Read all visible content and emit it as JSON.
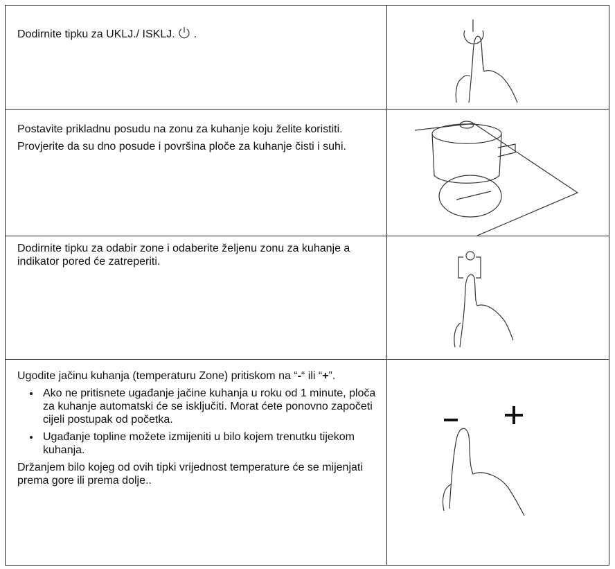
{
  "rows": [
    {
      "text_before": "Dodirnite tipku za UKLJ./ ISKLJ.",
      "text_after": "."
    },
    {
      "paragraphs": [
        "Postavite prikladnu posudu na zonu za kuhanje koju želite koristiti.",
        "Provjerite da su dno posude i površina ploče za kuhanje čisti i suhi."
      ]
    },
    {
      "paragraphs": [
        "Dodirnite tipku za odabir zone i odaberite željenu zonu za kuhanje a indikator pored će zatreperiti."
      ]
    },
    {
      "intro": [
        "Ugodite jačinu kuhanja (temperaturu Zone) pritiskom na  “",
        "-",
        "“ ili “",
        "+",
        "”."
      ],
      "bullets": [
        "Ako ne pritisnete ugađanje jačine kuhanja u roku od 1 minute, ploča za kuhanje automatski će se isključiti. Morat ćete ponovno započeti cijeli postupak od početka.",
        "Ugađanje topline možete izmijeniti u bilo kojem trenutku tijekom kuhanja."
      ],
      "closing": "Držanjem bilo kojeg od ovih tipki vrijednost temperature će se mijenjati prema gore ili prema dolje.."
    }
  ]
}
